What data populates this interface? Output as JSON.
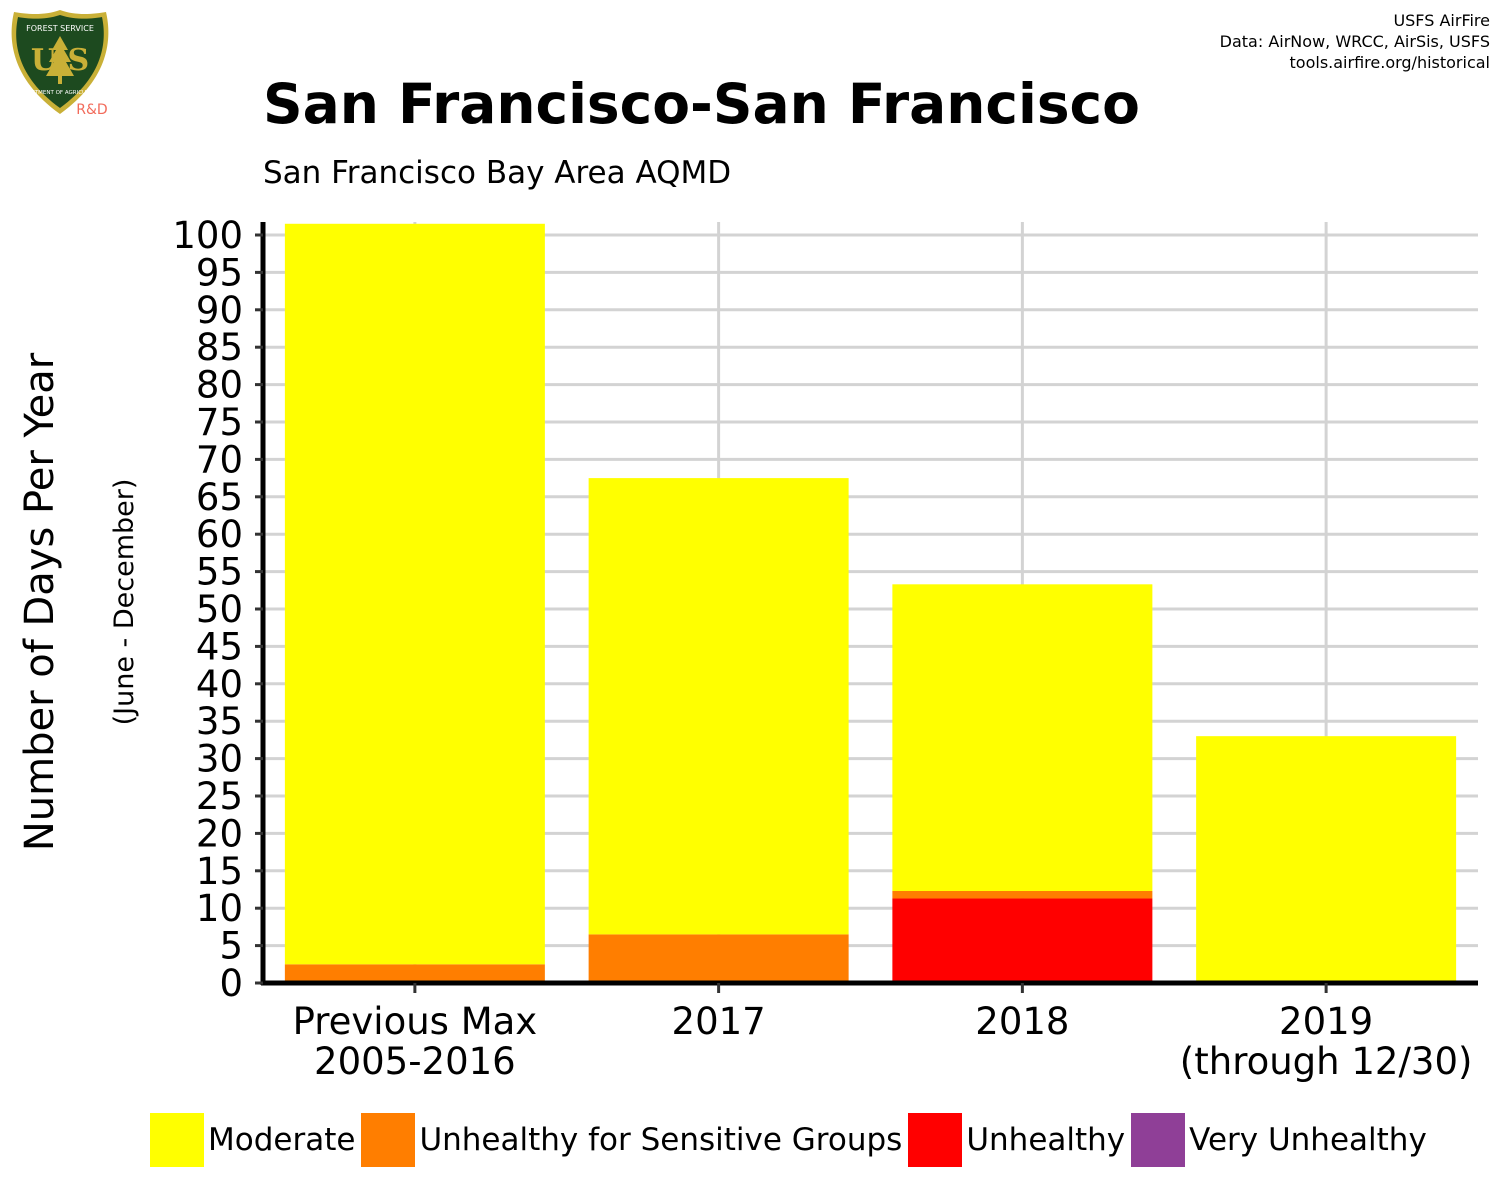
{
  "header": {
    "title": "San Francisco-San Francisco",
    "subtitle": "San Francisco Bay Area AQMD",
    "credit_lines": [
      "USFS AirFire",
      "Data: AirNow, WRCC, AirSis, USFS",
      "tools.airfire.org/historical"
    ]
  },
  "logo": {
    "top_text": "FOREST SERVICE",
    "letters": "U S",
    "bottom_text": "DEPARTMENT OF AGRICULTURE",
    "rd": "R&D"
  },
  "colors": {
    "moderate": "#ffff00",
    "usg": "#ff7e00",
    "unhealthy": "#ff0000",
    "very_unhealthy": "#8f3f97",
    "grid": "#d3d3d3",
    "logo_green": "#1d4a1f",
    "logo_gold": "#c9b037",
    "rd": "#f26b5b"
  },
  "chart_data": {
    "type": "bar",
    "stacked": true,
    "ylabel": "Number of Days Per Year",
    "ylabel_sub": "(June - December)",
    "ylim": [
      0,
      100
    ],
    "yticks": [
      0,
      5,
      10,
      15,
      20,
      25,
      30,
      35,
      40,
      45,
      50,
      55,
      60,
      65,
      70,
      75,
      80,
      85,
      90,
      95,
      100
    ],
    "grid": true,
    "categories": [
      [
        "Previous Max",
        "2005-2016"
      ],
      [
        "2017"
      ],
      [
        "2018"
      ],
      [
        "2019",
        "(through 12/30)"
      ]
    ],
    "series": [
      {
        "name": "Very Unhealthy",
        "color_key": "very_unhealthy",
        "values": [
          0,
          0,
          0.3,
          0
        ]
      },
      {
        "name": "Unhealthy",
        "color_key": "unhealthy",
        "values": [
          0,
          0,
          11,
          0
        ]
      },
      {
        "name": "Unhealthy for Sensitive Groups",
        "color_key": "usg",
        "values": [
          2.5,
          6.5,
          1,
          0
        ]
      },
      {
        "name": "Moderate",
        "color_key": "moderate",
        "values": [
          99,
          61,
          41,
          33
        ]
      }
    ],
    "legend_position": "bottom"
  },
  "legend": [
    {
      "label": "Moderate",
      "color_key": "moderate"
    },
    {
      "label": "Unhealthy for Sensitive Groups",
      "color_key": "usg"
    },
    {
      "label": "Unhealthy",
      "color_key": "unhealthy"
    },
    {
      "label": "Very Unhealthy",
      "color_key": "very_unhealthy"
    }
  ]
}
